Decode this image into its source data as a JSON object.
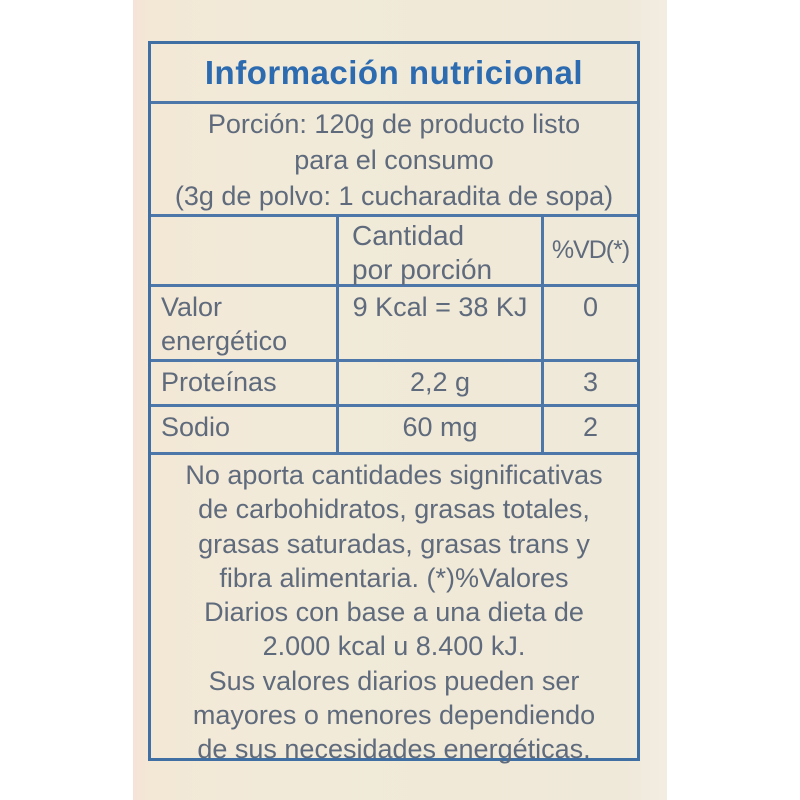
{
  "colors": {
    "border_blue": "#3f6fa3",
    "grid_blue": "#4d77a9",
    "title_blue": "#2d6bb0",
    "body_text_blue_gray": "#5f6b7c",
    "packaging_cream": "#f1ead9"
  },
  "label": {
    "title": "Información nutricional",
    "portion": "Porción: 120g de producto listo\npara el consumo\n(3g de polvo: 1 cucharadita de sopa)",
    "table": {
      "amount_header": "Cantidad\npor porción",
      "dv_header": "%VD(*)",
      "rows": [
        {
          "name": "Valor\nenergético",
          "amount": "9 Kcal = 38 KJ",
          "vd": "0"
        },
        {
          "name": "Proteínas",
          "amount": "2,2 g",
          "vd": "3"
        },
        {
          "name": "Sodio",
          "amount": "60 mg",
          "vd": "2"
        }
      ]
    },
    "footnote": "No aporta cantidades significativas\nde  carbohidratos, grasas totales,\ngrasas saturadas, grasas trans y\nfibra alimentaria. (*)%Valores\nDiarios con base a una dieta de\n2.000 kcal u 8.400 kJ.\nSus valores diarios pueden ser\nmayores o menores dependiendo\nde sus necesidades energéticas."
  }
}
